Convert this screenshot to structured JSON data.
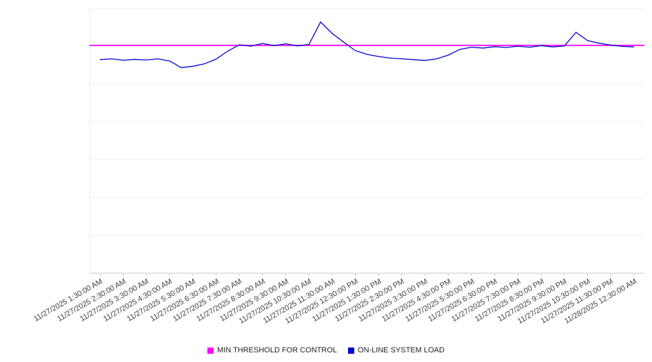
{
  "chart_data": {
    "type": "line",
    "title": "",
    "xlabel": "",
    "ylabel": "",
    "categories": [
      "11/27/2025 1:30:00 AM",
      "11/27/2025 2:30:00 AM",
      "11/27/2025 3:30:00 AM",
      "11/27/2025 4:30:00 AM",
      "11/27/2025 5:30:00 AM",
      "11/27/2025 6:30:00 AM",
      "11/27/2025 7:30:00 AM",
      "11/27/2025 8:30:00 AM",
      "11/27/2025 9:30:00 AM",
      "11/27/2025 10:30:00 AM",
      "11/27/2025 11:30:00 AM",
      "11/27/2025 12:30:00 PM",
      "11/27/2025 1:30:00 PM",
      "11/27/2025 2:30:00 PM",
      "11/27/2025 3:30:00 PM",
      "11/27/2025 4:30:00 PM",
      "11/27/2025 5:30:00 PM",
      "11/27/2025 6:30:00 PM",
      "11/27/2025 7:30:00 PM",
      "11/27/2025 8:30:00 PM",
      "11/27/2025 9:30:00 PM",
      "11/27/2025 10:30:00 PM",
      "11/27/2025 11:30:00 PM",
      "11/28/2025 12:30:00 AM"
    ],
    "series": [
      {
        "name": "MIN THRESHOLD FOR CONTROL",
        "role": "threshold",
        "color": "#ff00ff",
        "value": 86
      },
      {
        "name": "ON-LINE SYSTEM LOAD",
        "role": "data",
        "color": "#0000cc",
        "points_per_hour": 2,
        "values": [
          80.6,
          80.9,
          80.4,
          80.7,
          80.5,
          80.9,
          80.1,
          77.6,
          78.1,
          79.0,
          80.8,
          83.8,
          86.2,
          85.7,
          86.7,
          85.9,
          86.6,
          85.8,
          86.3,
          94.8,
          90.5,
          87.2,
          84.0,
          82.6,
          81.8,
          81.2,
          80.9,
          80.6,
          80.3,
          80.9,
          82.3,
          84.5,
          85.3,
          85.0,
          85.5,
          85.2,
          85.7,
          85.3,
          85.9,
          85.4,
          85.8,
          90.9,
          87.8,
          86.8,
          86.1,
          85.6,
          85.4
        ]
      }
    ],
    "ylim": [
      0,
      100
    ],
    "y_tick_labels_visible": false,
    "grid": "horizontal",
    "gridline_count": 7,
    "legend_position": "bottom",
    "x_label_rotation_deg": -30
  },
  "legend": {
    "items": [
      {
        "label": "MIN THRESHOLD FOR CONTROL",
        "color": "#ff00ff"
      },
      {
        "label": "ON-LINE SYSTEM LOAD",
        "color": "#0000cc"
      }
    ]
  }
}
